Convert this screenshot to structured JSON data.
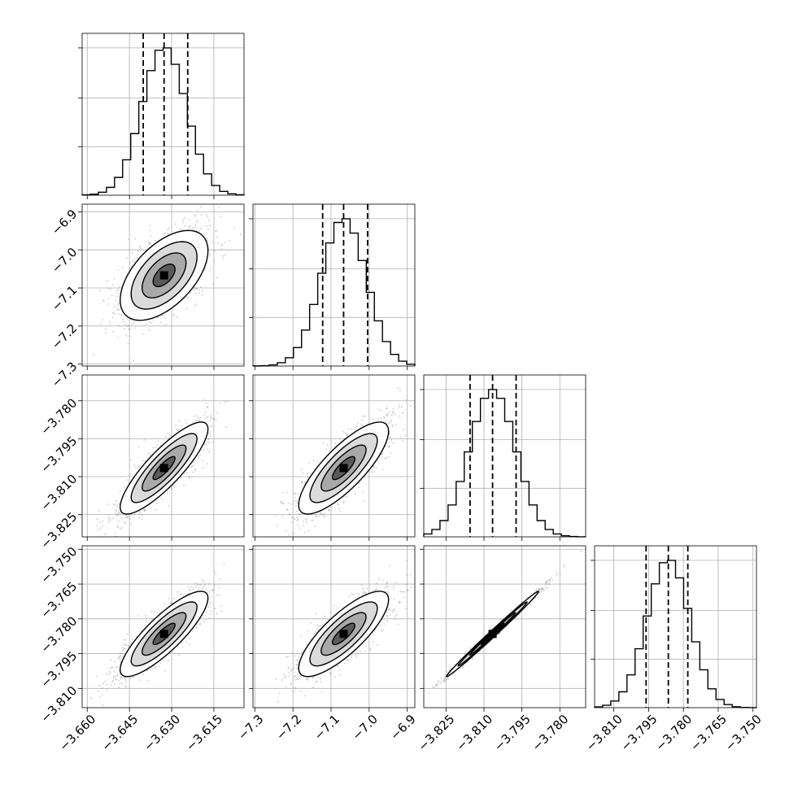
{
  "chart_data": {
    "type": "corner",
    "parameters": [
      {
        "ticks": [
          "−3.660",
          "−3.645",
          "−3.630",
          "−3.615"
        ],
        "tick_values": [
          -3.66,
          -3.645,
          -3.63,
          -3.615
        ],
        "range": [
          -3.6618,
          -3.6043
        ],
        "quantiles": [
          -3.6401,
          -3.6327,
          -3.6243
        ],
        "median": -3.6327,
        "sigma": 0.0078
      },
      {
        "ticks": [
          "−7.3",
          "−7.2",
          "−7.1",
          "−7.0",
          "−6.9"
        ],
        "tick_values": [
          -7.3,
          -7.2,
          -7.1,
          -7.0,
          -6.9
        ],
        "range": [
          -7.305,
          -6.88
        ],
        "quantiles": [
          -7.122,
          -7.067,
          -7.004
        ],
        "median": -7.067,
        "sigma": 0.059
      },
      {
        "ticks": [
          "−3.825",
          "−3.810",
          "−3.795",
          "−3.780"
        ],
        "tick_values": [
          -3.825,
          -3.81,
          -3.795,
          -3.78
        ],
        "range": [
          -3.8338,
          -3.7698
        ],
        "quantiles": [
          -3.8155,
          -3.8066,
          -3.7973
        ],
        "median": -3.8066,
        "sigma": 0.0091
      },
      {
        "ticks": [
          "−3.810",
          "−3.795",
          "−3.780",
          "−3.765",
          "−3.750"
        ],
        "tick_values": [
          -3.81,
          -3.795,
          -3.78,
          -3.765,
          -3.75
        ],
        "range": [
          -3.8183,
          -3.7485
        ],
        "quantiles": [
          -3.7961,
          -3.7865,
          -3.7781
        ],
        "median": -3.7865,
        "sigma": 0.0092
      }
    ],
    "correlations": [
      [
        1.0,
        0.55,
        0.85,
        0.84
      ],
      [
        0.55,
        1.0,
        0.8,
        0.8
      ],
      [
        0.85,
        0.8,
        1.0,
        0.995
      ],
      [
        0.84,
        0.8,
        0.995,
        1.0
      ]
    ],
    "histogram_bins": 20,
    "contour_levels_sigma": [
      0.5,
      1.0,
      1.5,
      2.0
    ],
    "grid": true,
    "colors": {
      "points": "#808080",
      "contours": "#000000",
      "density": "#000000"
    }
  }
}
